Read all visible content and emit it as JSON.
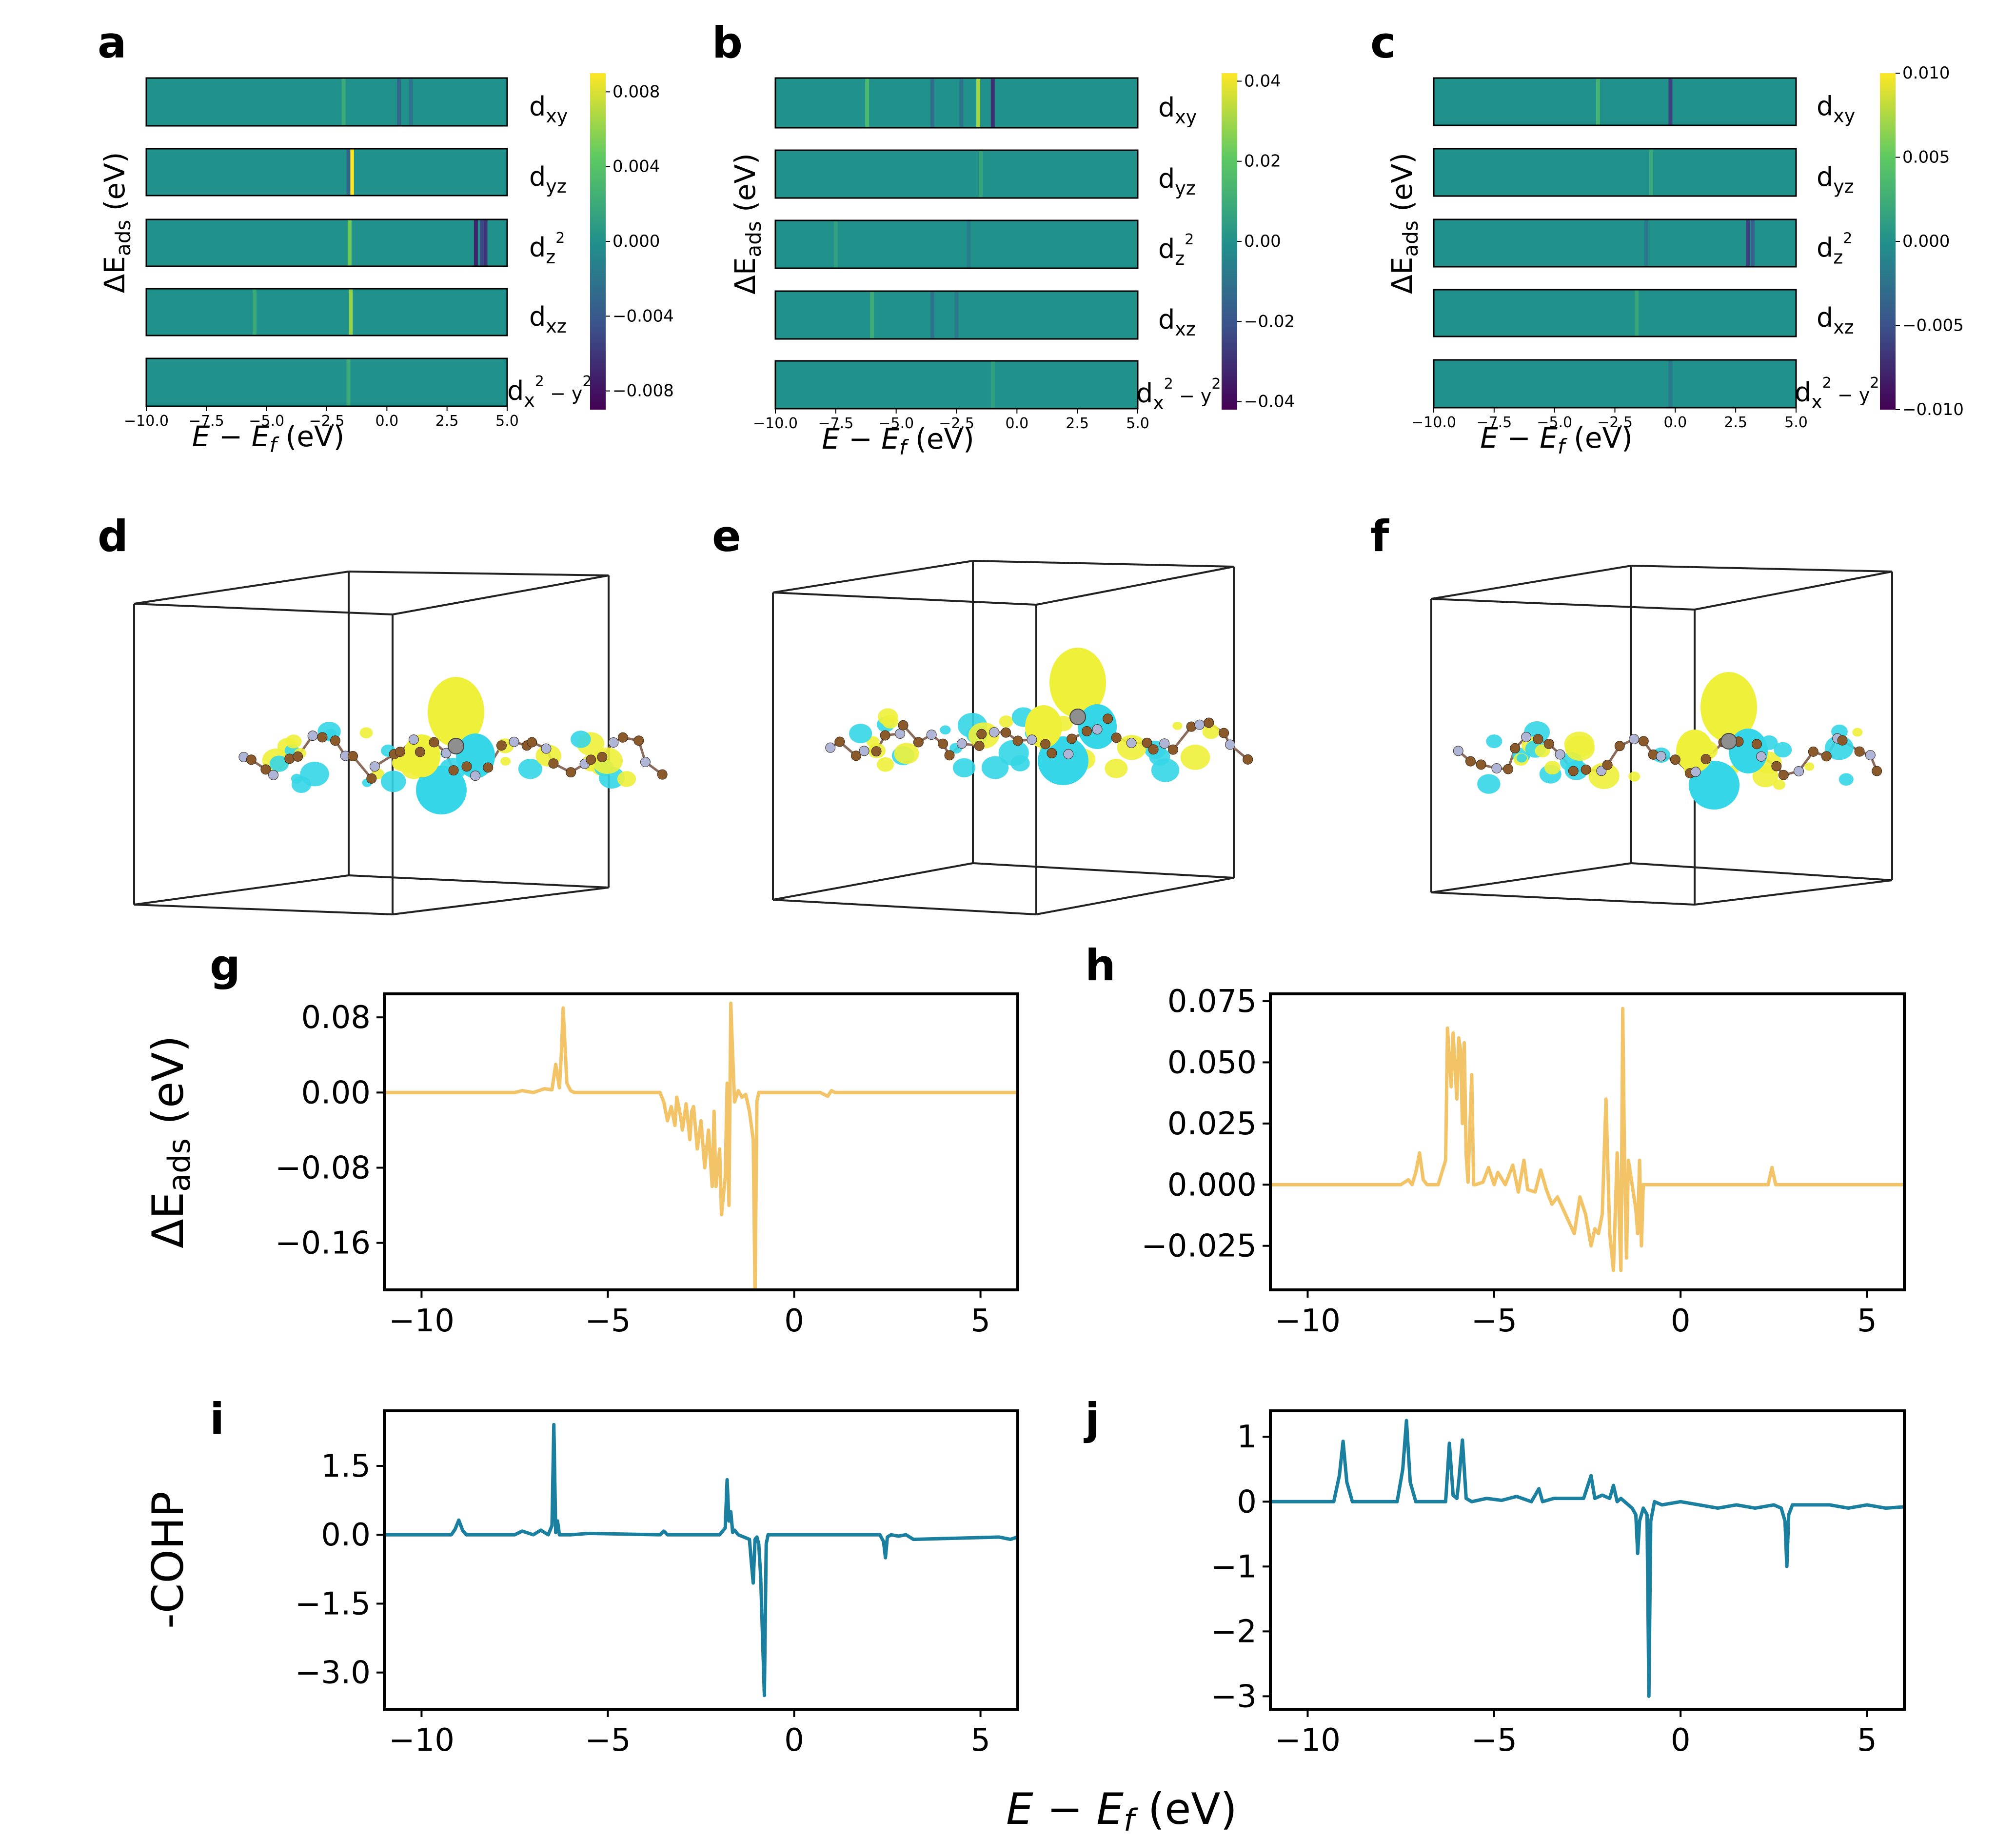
{
  "figure": {
    "panel_letters": [
      "a",
      "b",
      "c",
      "d",
      "e",
      "f",
      "g",
      "h",
      "i",
      "j"
    ],
    "colors": {
      "eads_line": "#f2c467",
      "cohp_line": "#1b7fa0",
      "heat_base": "#24878e",
      "viridis": [
        "#440154",
        "#3b528b",
        "#21918c",
        "#5ec962",
        "#fde725"
      ],
      "iso_yellow": "#eef03a",
      "iso_cyan": "#35d6e8",
      "atom_c": "#8b5a2b",
      "atom_n": "#aeb5d6"
    }
  },
  "chart_data": [
    {
      "id": "a",
      "type": "heatmap",
      "letter": "a",
      "ylabel_main": "ΔE",
      "ylabel_sub": "ads",
      "ylabel_unit": " (eV)",
      "xlabel_main": "E − E",
      "xlabel_sub": "f",
      "xlabel_unit": " (eV)",
      "x_ticks": [
        -10.0,
        -7.5,
        -5.0,
        -2.5,
        0.0,
        2.5,
        5.0
      ],
      "x_tick_labels": [
        "−10.0",
        "−7.5",
        "−5.0",
        "−2.5",
        "0.0",
        "2.5",
        "5.0"
      ],
      "xlim": [
        -10,
        5
      ],
      "rows": [
        {
          "label": "d",
          "sub": "xy",
          "sup": ""
        },
        {
          "label": "d",
          "sub": "yz",
          "sup": ""
        },
        {
          "label": "d",
          "sub": "z",
          "sup": "2"
        },
        {
          "label": "d",
          "sub": "xz",
          "sup": ""
        },
        {
          "label": "d",
          "sub": "x",
          "sup": "2",
          "tail": " − y",
          "tailsup": "2"
        }
      ],
      "colorbar": {
        "min": -0.009,
        "max": 0.009,
        "ticks": [
          0.008,
          0.004,
          0.0,
          -0.004,
          -0.008
        ],
        "tick_labels": [
          "0.008",
          "0.004",
          "0.000",
          "−0.004",
          "−0.008"
        ]
      },
      "stripes": [
        {
          "row": 0,
          "x": 0.5,
          "v": -0.003
        },
        {
          "row": 0,
          "x": 1.0,
          "v": -0.002
        },
        {
          "row": 0,
          "x": -1.8,
          "v": 0.002
        },
        {
          "row": 1,
          "x": -1.45,
          "v": 0.009
        },
        {
          "row": 1,
          "x": -1.6,
          "v": -0.003
        },
        {
          "row": 2,
          "x": 3.7,
          "v": -0.007
        },
        {
          "row": 2,
          "x": 4.1,
          "v": -0.006
        },
        {
          "row": 2,
          "x": 3.95,
          "v": -0.005
        },
        {
          "row": 2,
          "x": -1.55,
          "v": 0.005
        },
        {
          "row": 3,
          "x": -1.5,
          "v": 0.006
        },
        {
          "row": 3,
          "x": -5.5,
          "v": 0.002
        },
        {
          "row": 4,
          "x": -1.6,
          "v": 0.002
        }
      ]
    },
    {
      "id": "b",
      "type": "heatmap",
      "letter": "b",
      "ylabel_main": "ΔE",
      "ylabel_sub": "ads",
      "ylabel_unit": " (eV)",
      "xlabel_main": "E − E",
      "xlabel_sub": "f",
      "xlabel_unit": " (eV)",
      "x_ticks": [
        -10.0,
        -7.5,
        -5.0,
        -2.5,
        0.0,
        2.5,
        5.0
      ],
      "x_tick_labels": [
        "−10.0",
        "−7.5",
        "−5.0",
        "−2.5",
        "0.0",
        "2.5",
        "5.0"
      ],
      "xlim": [
        -10,
        5
      ],
      "rows": [
        {
          "label": "d",
          "sub": "xy",
          "sup": ""
        },
        {
          "label": "d",
          "sub": "yz",
          "sup": ""
        },
        {
          "label": "d",
          "sub": "z",
          "sup": "2"
        },
        {
          "label": "d",
          "sub": "xz",
          "sup": ""
        },
        {
          "label": "d",
          "sub": "x",
          "sup": "2",
          "tail": " − y",
          "tailsup": "2"
        }
      ],
      "colorbar": {
        "min": -0.042,
        "max": 0.042,
        "ticks": [
          0.04,
          0.02,
          0.0,
          -0.02,
          -0.04
        ],
        "tick_labels": [
          "0.04",
          "0.02",
          "0.00",
          "−0.02",
          "−0.04"
        ]
      },
      "stripes": [
        {
          "row": 0,
          "x": -1.0,
          "v": -0.03
        },
        {
          "row": 0,
          "x": -1.6,
          "v": 0.03
        },
        {
          "row": 0,
          "x": -3.5,
          "v": -0.012
        },
        {
          "row": 0,
          "x": -6.2,
          "v": 0.015
        },
        {
          "row": 0,
          "x": -2.3,
          "v": -0.01
        },
        {
          "row": 1,
          "x": -1.5,
          "v": 0.008
        },
        {
          "row": 2,
          "x": -7.5,
          "v": 0.006
        },
        {
          "row": 2,
          "x": -2.0,
          "v": -0.006
        },
        {
          "row": 3,
          "x": -6.0,
          "v": 0.01
        },
        {
          "row": 3,
          "x": -3.5,
          "v": -0.01
        },
        {
          "row": 3,
          "x": -2.5,
          "v": -0.008
        },
        {
          "row": 4,
          "x": -1.0,
          "v": 0.006
        }
      ]
    },
    {
      "id": "c",
      "type": "heatmap",
      "letter": "c",
      "ylabel_main": "ΔE",
      "ylabel_sub": "ads",
      "ylabel_unit": " (eV)",
      "xlabel_main": "E − E",
      "xlabel_sub": "f",
      "xlabel_unit": " (eV)",
      "x_ticks": [
        -10.0,
        -7.5,
        -5.0,
        -2.5,
        0.0,
        2.5,
        5.0
      ],
      "x_tick_labels": [
        "−10.0",
        "−7.5",
        "−5.0",
        "−2.5",
        "0.0",
        "2.5",
        "5.0"
      ],
      "xlim": [
        -10,
        5
      ],
      "rows": [
        {
          "label": "d",
          "sub": "xy",
          "sup": ""
        },
        {
          "label": "d",
          "sub": "yz",
          "sup": ""
        },
        {
          "label": "d",
          "sub": "z",
          "sup": "2"
        },
        {
          "label": "d",
          "sub": "xz",
          "sup": ""
        },
        {
          "label": "d",
          "sub": "x",
          "sup": "2",
          "tail": " − y",
          "tailsup": "2"
        }
      ],
      "colorbar": {
        "min": -0.01,
        "max": 0.01,
        "ticks": [
          0.01,
          0.005,
          0.0,
          -0.005,
          -0.01
        ],
        "tick_labels": [
          "0.010",
          "0.005",
          "0.000",
          "−0.005",
          "−0.010"
        ]
      },
      "stripes": [
        {
          "row": 0,
          "x": -0.2,
          "v": -0.006
        },
        {
          "row": 0,
          "x": -3.2,
          "v": 0.003
        },
        {
          "row": 1,
          "x": -1.0,
          "v": 0.002
        },
        {
          "row": 2,
          "x": 3.0,
          "v": -0.006
        },
        {
          "row": 2,
          "x": 3.2,
          "v": -0.004
        },
        {
          "row": 2,
          "x": -1.2,
          "v": -0.002
        },
        {
          "row": 3,
          "x": -1.6,
          "v": 0.002
        },
        {
          "row": 4,
          "x": -0.2,
          "v": -0.002
        }
      ]
    },
    {
      "id": "g",
      "type": "line",
      "letter": "g",
      "ylabel_main": "ΔE",
      "ylabel_sub": "ads",
      "ylabel_unit": " (eV)",
      "xlim": [
        -11,
        6
      ],
      "ylim": [
        -0.21,
        0.105
      ],
      "x_ticks": [
        -10,
        -5,
        0,
        5
      ],
      "x_tick_labels": [
        "−10",
        "−5",
        "0",
        "5"
      ],
      "y_ticks": [
        0.08,
        0.0,
        -0.08,
        -0.16
      ],
      "y_tick_labels": [
        "0.08",
        "0.00",
        "−0.08",
        "−0.16"
      ],
      "series": [
        {
          "name": "ΔEads",
          "x": [
            -11,
            -7.5,
            -7.3,
            -7.0,
            -6.7,
            -6.5,
            -6.4,
            -6.3,
            -6.25,
            -6.2,
            -6.15,
            -6.1,
            -6.0,
            -5.9,
            -3.6,
            -3.5,
            -3.4,
            -3.3,
            -3.2,
            -3.15,
            -3.05,
            -3.0,
            -2.9,
            -2.8,
            -2.75,
            -2.7,
            -2.6,
            -2.5,
            -2.4,
            -2.3,
            -2.2,
            -2.15,
            -2.1,
            -2.0,
            -1.95,
            -1.85,
            -1.8,
            -1.75,
            -1.7,
            -1.65,
            -1.6,
            -1.5,
            -1.4,
            -1.3,
            -1.2,
            -1.1,
            -1.05,
            -1.0,
            -0.95,
            -0.85,
            0.7,
            0.9,
            1.0,
            1.1,
            6
          ],
          "y": [
            0,
            0,
            0.002,
            0,
            0.004,
            0.003,
            0.03,
            0.005,
            0.04,
            0.09,
            0.05,
            0.01,
            0.002,
            0,
            0,
            -0.01,
            -0.03,
            -0.015,
            -0.035,
            -0.005,
            -0.025,
            -0.04,
            -0.012,
            -0.05,
            -0.02,
            -0.015,
            -0.06,
            -0.03,
            -0.08,
            -0.04,
            -0.1,
            -0.02,
            -0.1,
            -0.06,
            -0.13,
            -0.09,
            0.01,
            -0.12,
            0.095,
            0.04,
            -0.01,
            0.002,
            -0.005,
            -0.002,
            -0.02,
            -0.05,
            -0.215,
            -0.01,
            0,
            0,
            0,
            -0.004,
            0.002,
            0,
            0
          ]
        }
      ]
    },
    {
      "id": "h",
      "type": "line",
      "letter": "h",
      "ylabel_main": "",
      "ylabel_sub": "",
      "ylabel_unit": "",
      "xlim": [
        -11,
        6
      ],
      "ylim": [
        -0.043,
        0.078
      ],
      "x_ticks": [
        -10,
        -5,
        0,
        5
      ],
      "x_tick_labels": [
        "−10",
        "−5",
        "0",
        "5"
      ],
      "y_ticks": [
        0.075,
        0.05,
        0.025,
        0.0,
        -0.025
      ],
      "y_tick_labels": [
        "0.075",
        "0.050",
        "0.025",
        "0.000",
        "−0.025"
      ],
      "series": [
        {
          "name": "ΔEads",
          "x": [
            -11,
            -7.5,
            -7.3,
            -7.2,
            -7.1,
            -7.0,
            -6.9,
            -6.8,
            -6.5,
            -6.3,
            -6.25,
            -6.15,
            -6.1,
            -6.0,
            -5.95,
            -5.9,
            -5.85,
            -5.8,
            -5.75,
            -5.7,
            -5.6,
            -5.55,
            -5.5,
            -5.3,
            -5.15,
            -5.0,
            -4.9,
            -4.7,
            -4.5,
            -4.35,
            -4.2,
            -4.1,
            -3.9,
            -3.75,
            -3.6,
            -3.45,
            -3.3,
            -3.15,
            -3.0,
            -2.85,
            -2.7,
            -2.55,
            -2.4,
            -2.3,
            -2.2,
            -2.1,
            -2.0,
            -1.9,
            -1.8,
            -1.7,
            -1.6,
            -1.55,
            -1.5,
            -1.45,
            -1.4,
            -1.3,
            -1.2,
            -1.15,
            -1.1,
            -1.05,
            -1.0,
            -0.9,
            2.35,
            2.45,
            2.55,
            6
          ],
          "y": [
            0,
            0,
            0.002,
            0,
            0.005,
            0.013,
            0.002,
            0,
            0,
            0.01,
            0.064,
            0.04,
            0.062,
            0.035,
            0.06,
            0.055,
            0.025,
            0.058,
            0.012,
            0.001,
            0.045,
            0.0,
            0.0,
            0.001,
            0.007,
            0,
            0.005,
            0,
            0.008,
            -0.003,
            0.01,
            -0.002,
            -0.003,
            0.006,
            -0.002,
            -0.008,
            -0.005,
            -0.01,
            -0.015,
            -0.02,
            -0.005,
            -0.012,
            -0.025,
            -0.018,
            -0.02,
            -0.012,
            0.035,
            -0.02,
            -0.035,
            0.013,
            -0.035,
            0.072,
            0.005,
            -0.03,
            0.01,
            0,
            -0.01,
            -0.02,
            0.01,
            -0.025,
            0,
            0,
            0,
            0.007,
            0,
            0
          ]
        }
      ]
    },
    {
      "id": "i",
      "type": "line",
      "letter": "i",
      "ylabel_main": "-COHP",
      "ylabel_sub": "",
      "ylabel_unit": "",
      "xlim": [
        -11,
        6
      ],
      "ylim": [
        -3.8,
        2.7
      ],
      "x_ticks": [
        -10,
        -5,
        0,
        5
      ],
      "x_tick_labels": [
        "−10",
        "−5",
        "0",
        "5"
      ],
      "y_ticks": [
        1.5,
        0.0,
        -1.5,
        -3.0
      ],
      "y_tick_labels": [
        "1.5",
        "0.0",
        "−1.5",
        "−3.0"
      ],
      "series": [
        {
          "name": "-COHP",
          "x": [
            -11,
            -9.2,
            -9.1,
            -9.0,
            -8.9,
            -8.8,
            -7.5,
            -7.3,
            -7.0,
            -6.8,
            -6.6,
            -6.5,
            -6.45,
            -6.4,
            -6.35,
            -6.3,
            -6.0,
            -5.5,
            -3.6,
            -3.5,
            -3.4,
            -2.0,
            -1.85,
            -1.8,
            -1.75,
            -1.7,
            -1.65,
            -1.6,
            -1.5,
            -1.2,
            -1.15,
            -1.1,
            -1.05,
            -1.0,
            -0.95,
            -0.9,
            -0.8,
            -0.75,
            -0.7,
            -0.6,
            2.3,
            2.4,
            2.45,
            2.5,
            2.6,
            2.8,
            3.0,
            3.2,
            5.5,
            5.8,
            6
          ],
          "y": [
            0,
            0,
            0.12,
            0.32,
            0.1,
            0,
            0,
            0.08,
            0,
            0.1,
            0,
            0.2,
            2.4,
            0.05,
            0.3,
            0,
            0,
            0.03,
            0,
            0.08,
            0,
            0,
            0.15,
            1.2,
            0.3,
            0.5,
            0.05,
            0.1,
            0,
            -0.1,
            -0.6,
            -1.05,
            -0.1,
            -0.05,
            -0.2,
            -0.9,
            -3.5,
            -0.2,
            0,
            0,
            0,
            -0.15,
            -0.5,
            -0.05,
            0,
            -0.03,
            0,
            -0.1,
            -0.05,
            -0.1,
            -0.05
          ]
        }
      ]
    },
    {
      "id": "j",
      "type": "line",
      "letter": "j",
      "ylabel_main": "",
      "ylabel_sub": "",
      "ylabel_unit": "",
      "xlim": [
        -11,
        6
      ],
      "ylim": [
        -3.2,
        1.4
      ],
      "x_ticks": [
        -10,
        -5,
        0,
        5
      ],
      "x_tick_labels": [
        "−10",
        "−5",
        "0",
        "5"
      ],
      "y_ticks": [
        1,
        0,
        -1,
        -2,
        -3
      ],
      "y_tick_labels": [
        "1",
        "0",
        "−1",
        "−2",
        "−3"
      ],
      "series": [
        {
          "name": "-COHP",
          "x": [
            -11,
            -9.3,
            -9.15,
            -9.05,
            -8.95,
            -8.8,
            -7.6,
            -7.45,
            -7.35,
            -7.25,
            -7.1,
            -6.3,
            -6.2,
            -6.1,
            -6.0,
            -5.95,
            -5.85,
            -5.75,
            -5.6,
            -5.2,
            -4.8,
            -4.4,
            -4.0,
            -3.8,
            -3.7,
            -3.4,
            -3.0,
            -2.6,
            -2.4,
            -2.3,
            -2.1,
            -1.9,
            -1.8,
            -1.7,
            -1.6,
            -1.5,
            -1.3,
            -1.2,
            -1.15,
            -1.1,
            -1.0,
            -0.9,
            -0.85,
            -0.8,
            -0.7,
            -0.5,
            0,
            0.5,
            1.0,
            1.5,
            2.0,
            2.5,
            2.7,
            2.8,
            2.85,
            2.9,
            3.0,
            3.5,
            4.0,
            4.5,
            5.0,
            5.5,
            6.0
          ],
          "y": [
            0,
            0,
            0.4,
            0.93,
            0.3,
            0,
            0,
            0.5,
            1.25,
            0.3,
            0,
            0,
            0.9,
            0.1,
            0.05,
            0.3,
            0.95,
            0.05,
            0,
            0.05,
            0.02,
            0.08,
            0,
            0.2,
            0,
            0.05,
            0.05,
            0.05,
            0.4,
            0.05,
            0.1,
            0.05,
            0.25,
            0,
            0.05,
            0,
            -0.1,
            -0.2,
            -0.8,
            -0.3,
            -0.1,
            -0.2,
            -3.0,
            -0.3,
            0,
            -0.05,
            0,
            -0.05,
            -0.1,
            -0.05,
            -0.1,
            -0.05,
            -0.1,
            -0.3,
            -1.0,
            -0.2,
            -0.05,
            -0.05,
            -0.05,
            -0.1,
            -0.05,
            -0.1,
            -0.08
          ]
        }
      ]
    }
  ],
  "shared": {
    "bottom_xlabel_main": "E − E",
    "bottom_xlabel_sub": "f",
    "bottom_xlabel_unit": " (eV)"
  }
}
